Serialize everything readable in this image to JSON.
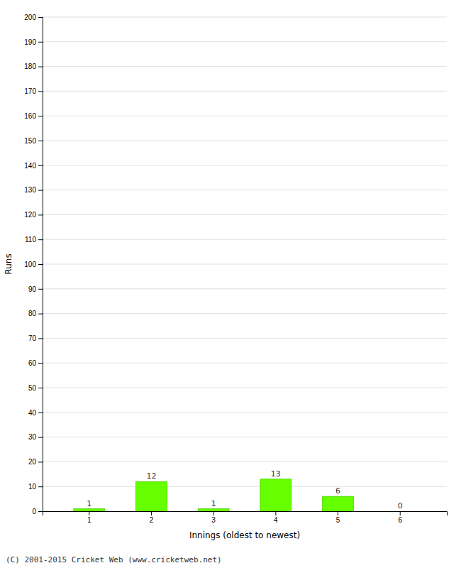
{
  "chart_data": {
    "type": "bar",
    "xlabel": "Innings (oldest to newest)",
    "ylabel": "Runs",
    "categories": [
      "1",
      "2",
      "3",
      "4",
      "5",
      "6"
    ],
    "values": [
      1,
      12,
      1,
      13,
      6,
      0
    ],
    "color": "#66ff00",
    "ylim": [
      0,
      200
    ],
    "yticks": [
      0,
      10,
      20,
      30,
      40,
      50,
      60,
      70,
      80,
      90,
      100,
      110,
      120,
      130,
      140,
      150,
      160,
      170,
      180,
      190,
      200
    ],
    "grid": true,
    "data_labels": true,
    "footer": "(C) 2001-2015 Cricket Web (www.cricketweb.net)"
  }
}
